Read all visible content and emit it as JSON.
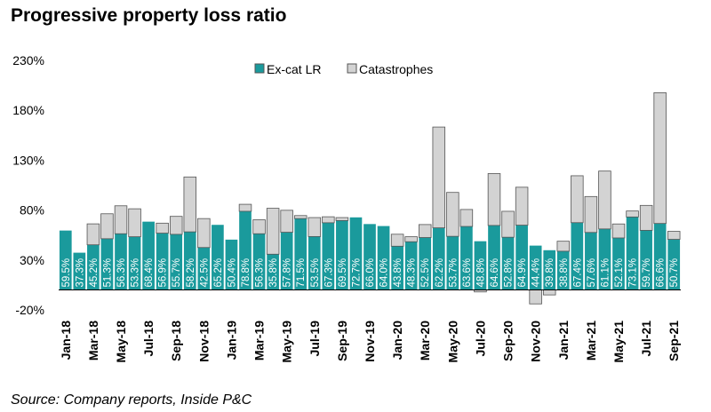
{
  "title": "Progressive property loss ratio",
  "source": "Source: Company reports, Inside P&C",
  "colors": {
    "excat": "#1a9a9c",
    "cat": "#d3d3d3",
    "border": "#555555"
  },
  "chart_data": {
    "type": "bar",
    "stacked": true,
    "title": "Progressive property loss ratio",
    "ylim": [
      -20,
      230
    ],
    "yticks": [
      -20,
      30,
      80,
      130,
      180,
      230
    ],
    "ytick_labels": [
      "-20%",
      "30%",
      "80%",
      "130%",
      "180%",
      "230%"
    ],
    "legend": [
      "Ex-cat LR",
      "Catastrophes"
    ],
    "legend_position": "top-center",
    "categories": [
      "Jan-18",
      "Feb-18",
      "Mar-18",
      "Apr-18",
      "May-18",
      "Jun-18",
      "Jul-18",
      "Aug-18",
      "Sep-18",
      "Oct-18",
      "Nov-18",
      "Dec-18",
      "Jan-19",
      "Feb-19",
      "Mar-19",
      "Apr-19",
      "May-19",
      "Jun-19",
      "Jul-19",
      "Aug-19",
      "Sep-19",
      "Oct-19",
      "Nov-19",
      "Dec-19",
      "Jan-20",
      "Feb-20",
      "Mar-20",
      "Apr-20",
      "May-20",
      "Jun-20",
      "Jul-20",
      "Aug-20",
      "Sep-20",
      "Oct-20",
      "Nov-20",
      "Dec-20",
      "Jan-21",
      "Feb-21",
      "Mar-21",
      "Apr-21",
      "May-21",
      "Jun-21",
      "Jul-21",
      "Aug-21",
      "Sep-21"
    ],
    "xtick_labels": [
      "Jan-18",
      "Mar-18",
      "May-18",
      "Jul-18",
      "Sep-18",
      "Nov-18",
      "Jan-19",
      "Mar-19",
      "May-19",
      "Jul-19",
      "Sep-19",
      "Nov-19",
      "Jan-20",
      "Mar-20",
      "May-20",
      "Jul-20",
      "Sep-20",
      "Nov-20",
      "Jan-21",
      "Mar-21",
      "May-21",
      "Jul-21",
      "Sep-21"
    ],
    "series": [
      {
        "name": "Ex-cat LR",
        "values": [
          59.5,
          37.3,
          45.2,
          51.3,
          56.3,
          53.3,
          68.4,
          56.9,
          55.7,
          58.2,
          42.5,
          65.2,
          50.4,
          78.8,
          56.3,
          35.8,
          57.8,
          71.5,
          53.5,
          67.3,
          69.5,
          72.7,
          66.0,
          64.0,
          43.8,
          48.3,
          52.5,
          62.2,
          53.7,
          63.6,
          48.8,
          64.6,
          52.8,
          64.9,
          44.4,
          39.8,
          38.8,
          67.4,
          57.6,
          61.1,
          52.1,
          73.1,
          59.7,
          66.6,
          50.7
        ],
        "labels": [
          "59.5%",
          "37.3%",
          "45.2%",
          "51.3%",
          "56.3%",
          "53.3%",
          "68.4%",
          "56.9%",
          "55.7%",
          "58.2%",
          "42.5%",
          "65.2%",
          "50.4%",
          "78.8%",
          "56.3%",
          "35.8%",
          "57.8%",
          "71.5%",
          "53.5%",
          "67.3%",
          "69.5%",
          "72.7%",
          "66.0%",
          "64.0%",
          "43.8%",
          "48.3%",
          "52.5%",
          "62.2%",
          "53.7%",
          "63.6%",
          "48.8%",
          "64.6%",
          "52.8%",
          "64.9%",
          "44.4%",
          "39.8%",
          "38.8%",
          "67.4%",
          "57.6%",
          "61.1%",
          "52.1%",
          "73.1%",
          "59.7%",
          "66.6%",
          "50.7%"
        ]
      },
      {
        "name": "Catastrophes",
        "values": [
          0,
          0,
          21,
          25,
          28,
          28,
          0,
          10,
          18,
          55,
          29,
          0,
          0,
          7,
          14,
          46,
          22,
          3,
          19,
          6,
          3,
          0,
          0,
          0,
          12,
          5,
          13,
          101,
          44,
          17,
          -2,
          52,
          26,
          38,
          -14,
          -5,
          10,
          47,
          36,
          58,
          14,
          6,
          25,
          131,
          8
        ]
      }
    ]
  }
}
